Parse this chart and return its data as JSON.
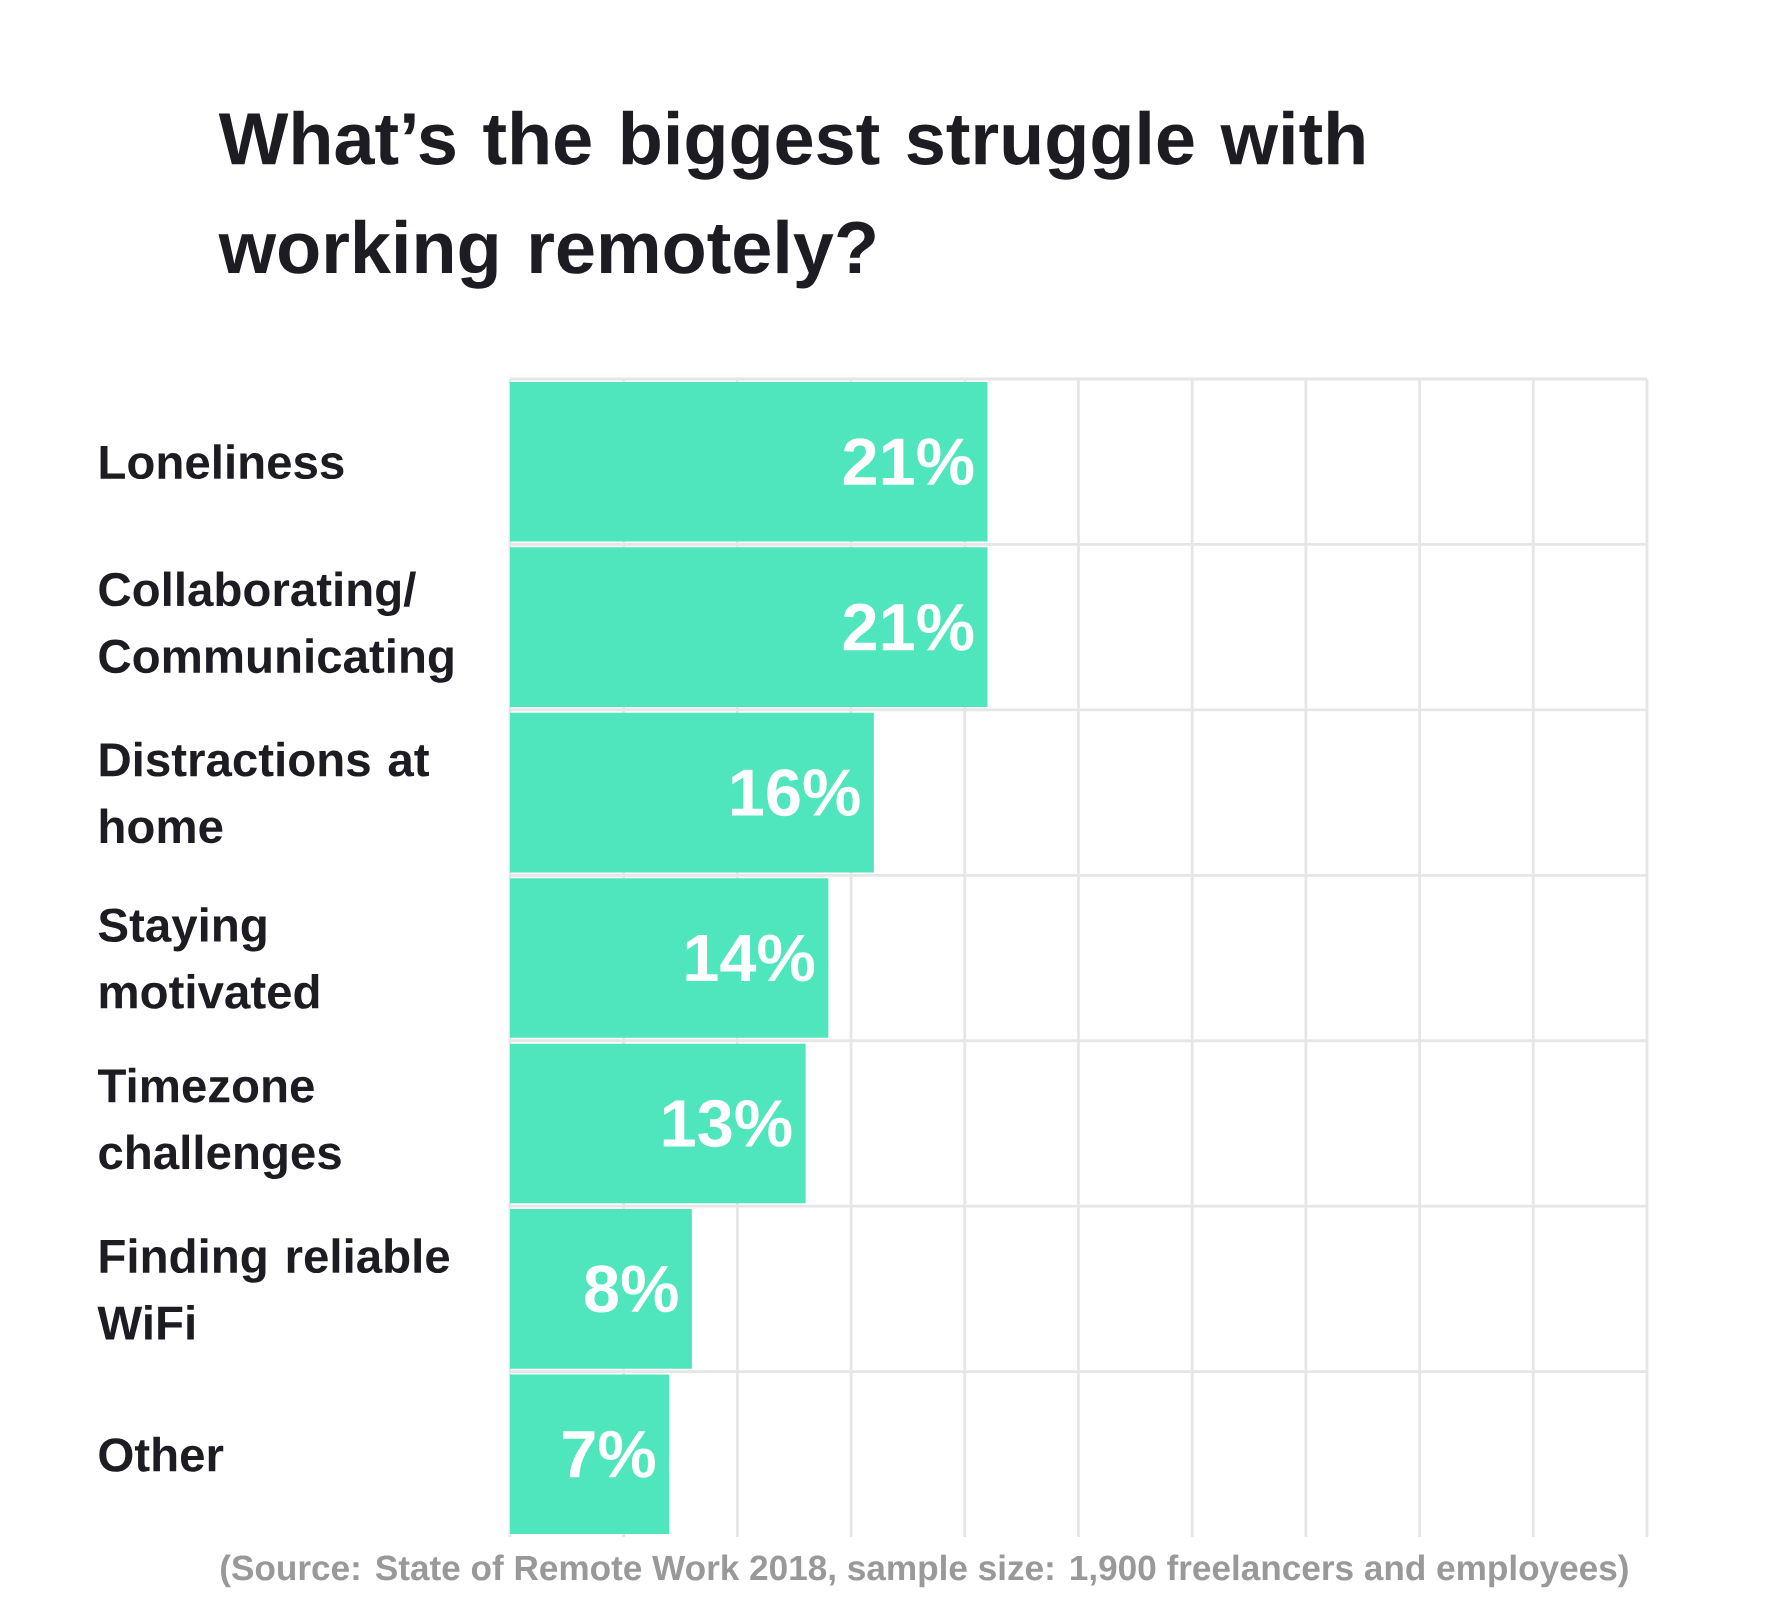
{
  "chart_data": {
    "type": "bar",
    "orientation": "horizontal",
    "title": "What’s the biggest struggle with working remotely?",
    "categories": [
      "Loneliness",
      "Collaborating/ Communicating",
      "Distractions at home",
      "Staying motivated",
      "Timezone challenges",
      "Finding reliable WiFi",
      "Other"
    ],
    "values": [
      21,
      21,
      16,
      14,
      13,
      8,
      7
    ],
    "value_labels": [
      "21%",
      "21%",
      "16%",
      "14%",
      "13%",
      "8%",
      "7%"
    ],
    "color": "#50e6bd",
    "xlim": [
      0,
      50
    ],
    "xticks": [
      {
        "value": 0,
        "label": null
      },
      {
        "value": 5,
        "label": null
      },
      {
        "value": 10,
        "label": null
      },
      {
        "value": 15,
        "label": null
      },
      {
        "value": 20,
        "label": null
      },
      {
        "value": 25,
        "label": null
      },
      {
        "value": 30,
        "label": null
      },
      {
        "value": 35,
        "label": null
      },
      {
        "value": 40,
        "label": null
      },
      {
        "value": 45,
        "label": null
      },
      {
        "value": 50,
        "label": null
      }
    ],
    "tick_labels": "y",
    "grid": true,
    "annotations": [
      "(Source: State of Remote Work 2018, sample size: 1,900 freelancers and employees)"
    ]
  }
}
